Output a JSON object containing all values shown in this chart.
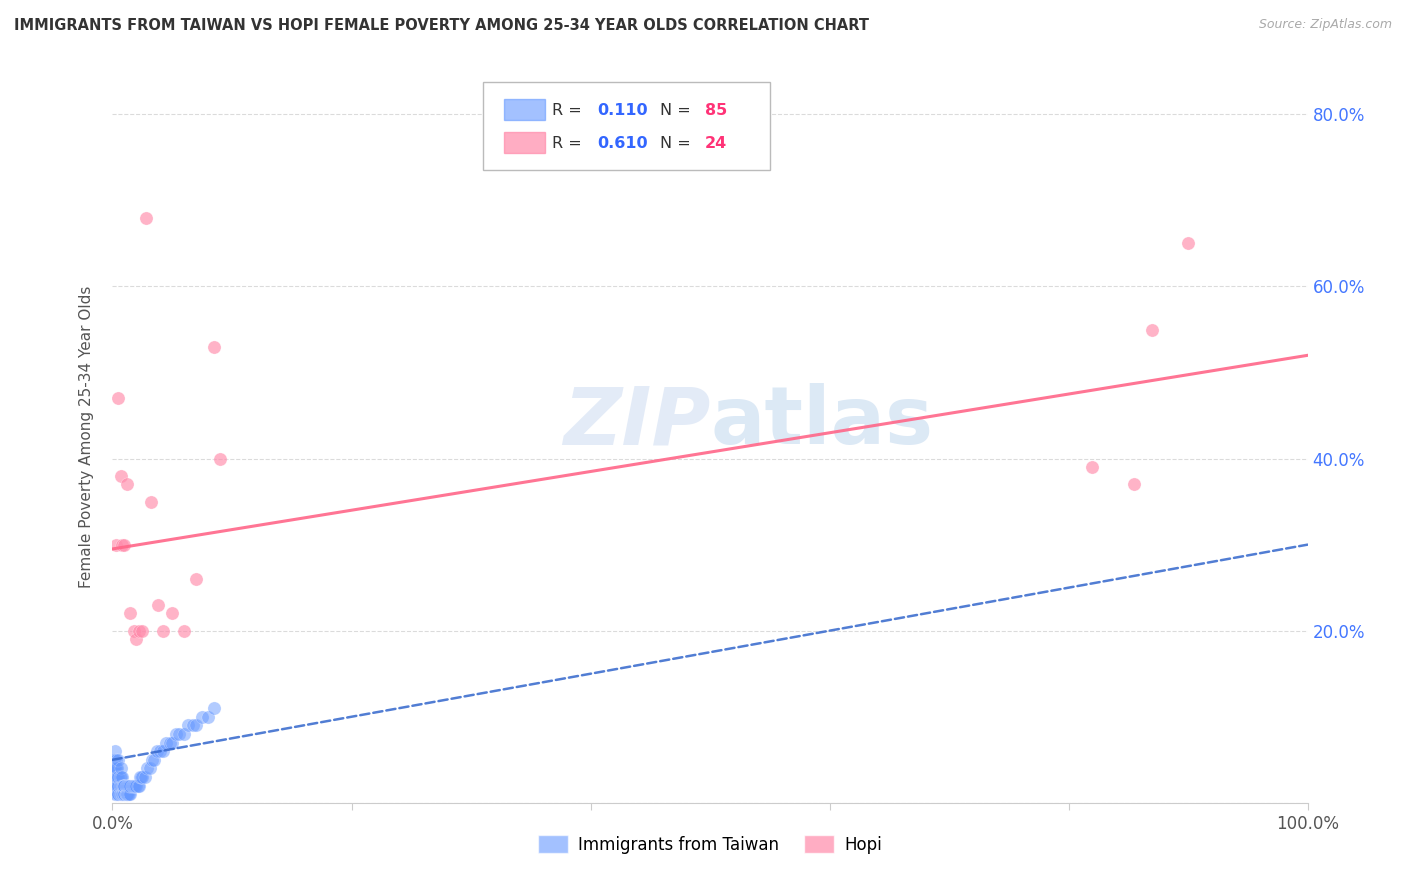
{
  "title": "IMMIGRANTS FROM TAIWAN VS HOPI FEMALE POVERTY AMONG 25-34 YEAR OLDS CORRELATION CHART",
  "source": "Source: ZipAtlas.com",
  "ylabel": "Female Poverty Among 25-34 Year Olds",
  "xlim": [
    0,
    1.0
  ],
  "ylim": [
    0,
    0.85
  ],
  "taiwan_R": 0.11,
  "taiwan_N": 85,
  "hopi_R": 0.61,
  "hopi_N": 24,
  "taiwan_color": "#6699ff",
  "hopi_color": "#ff8aaa",
  "taiwan_line_color": "#3366cc",
  "hopi_line_color": "#ff6688",
  "taiwan_line_start_y": 0.05,
  "taiwan_line_end_y": 0.3,
  "hopi_line_start_y": 0.295,
  "hopi_line_end_y": 0.52,
  "hopi_x": [
    0.003,
    0.005,
    0.007,
    0.008,
    0.01,
    0.012,
    0.015,
    0.018,
    0.02,
    0.022,
    0.025,
    0.028,
    0.032,
    0.038,
    0.042,
    0.05,
    0.06,
    0.07,
    0.085,
    0.09,
    0.82,
    0.855,
    0.87,
    0.9
  ],
  "hopi_y": [
    0.3,
    0.47,
    0.38,
    0.3,
    0.3,
    0.37,
    0.22,
    0.2,
    0.19,
    0.2,
    0.2,
    0.68,
    0.35,
    0.23,
    0.2,
    0.22,
    0.2,
    0.26,
    0.53,
    0.4,
    0.39,
    0.37,
    0.55,
    0.65
  ],
  "taiwan_scatter_x": [
    0.0005,
    0.001,
    0.001,
    0.001,
    0.001,
    0.002,
    0.002,
    0.002,
    0.002,
    0.002,
    0.003,
    0.003,
    0.003,
    0.003,
    0.003,
    0.003,
    0.004,
    0.004,
    0.004,
    0.004,
    0.005,
    0.005,
    0.005,
    0.005,
    0.005,
    0.006,
    0.006,
    0.006,
    0.007,
    0.007,
    0.007,
    0.007,
    0.008,
    0.008,
    0.008,
    0.008,
    0.009,
    0.009,
    0.009,
    0.01,
    0.01,
    0.01,
    0.01,
    0.011,
    0.011,
    0.011,
    0.012,
    0.012,
    0.012,
    0.013,
    0.013,
    0.014,
    0.014,
    0.015,
    0.015,
    0.016,
    0.017,
    0.018,
    0.019,
    0.02,
    0.021,
    0.022,
    0.023,
    0.024,
    0.025,
    0.027,
    0.029,
    0.031,
    0.033,
    0.035,
    0.037,
    0.04,
    0.042,
    0.045,
    0.048,
    0.05,
    0.053,
    0.056,
    0.06,
    0.063,
    0.067,
    0.07,
    0.075,
    0.08,
    0.085
  ],
  "taiwan_scatter_y": [
    0.04,
    0.02,
    0.03,
    0.04,
    0.05,
    0.01,
    0.02,
    0.03,
    0.04,
    0.06,
    0.01,
    0.02,
    0.02,
    0.03,
    0.04,
    0.05,
    0.01,
    0.02,
    0.03,
    0.04,
    0.01,
    0.01,
    0.02,
    0.03,
    0.05,
    0.01,
    0.02,
    0.03,
    0.01,
    0.02,
    0.03,
    0.04,
    0.01,
    0.01,
    0.02,
    0.03,
    0.01,
    0.02,
    0.02,
    0.01,
    0.01,
    0.02,
    0.02,
    0.01,
    0.01,
    0.02,
    0.01,
    0.01,
    0.02,
    0.01,
    0.02,
    0.01,
    0.02,
    0.01,
    0.02,
    0.02,
    0.02,
    0.02,
    0.02,
    0.02,
    0.02,
    0.02,
    0.03,
    0.03,
    0.03,
    0.03,
    0.04,
    0.04,
    0.05,
    0.05,
    0.06,
    0.06,
    0.06,
    0.07,
    0.07,
    0.07,
    0.08,
    0.08,
    0.08,
    0.09,
    0.09,
    0.09,
    0.1,
    0.1,
    0.11
  ]
}
